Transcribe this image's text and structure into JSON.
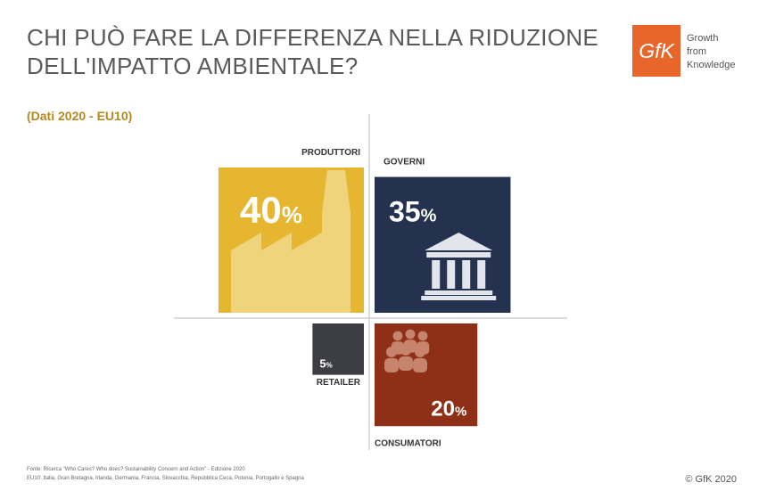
{
  "title": "CHI PUÒ FARE LA DIFFERENZA NELLA RIDUZIONE DELL'IMPATTO AMBIENTALE?",
  "subtitle": "(Dati 2020 - EU10)",
  "logo": {
    "mark": "GfK",
    "tagline": [
      "Growth",
      "from",
      "Knowledge"
    ]
  },
  "colors": {
    "produttori": "#e6b631",
    "governi": "#243250",
    "retailer": "#3d3d44",
    "consumatori": "#8e3018"
  },
  "chart_data": {
    "type": "bar",
    "categories": [
      "PRODUTTORI",
      "GOVERNI",
      "RETAILER",
      "CONSUMATORI"
    ],
    "values": [
      40,
      35,
      5,
      20
    ],
    "labels": [
      "40%",
      "35%",
      "5%",
      "20%"
    ],
    "unit": "%"
  },
  "icons": [
    "factory-icon",
    "government-building-icon",
    "people-group-icon"
  ],
  "footnote": [
    "Fonte: Ricerca \"Who Cares? Who does? Sustainability Concern and Action\" - Edizione 2020",
    "EU10: Italia, Gran Bretagna, Irlanda, Germania, Francia, Slovacchia, Repubblica Ceca, Polonia, Portogallo e Spagna"
  ],
  "copyright": "© GfK 2020"
}
